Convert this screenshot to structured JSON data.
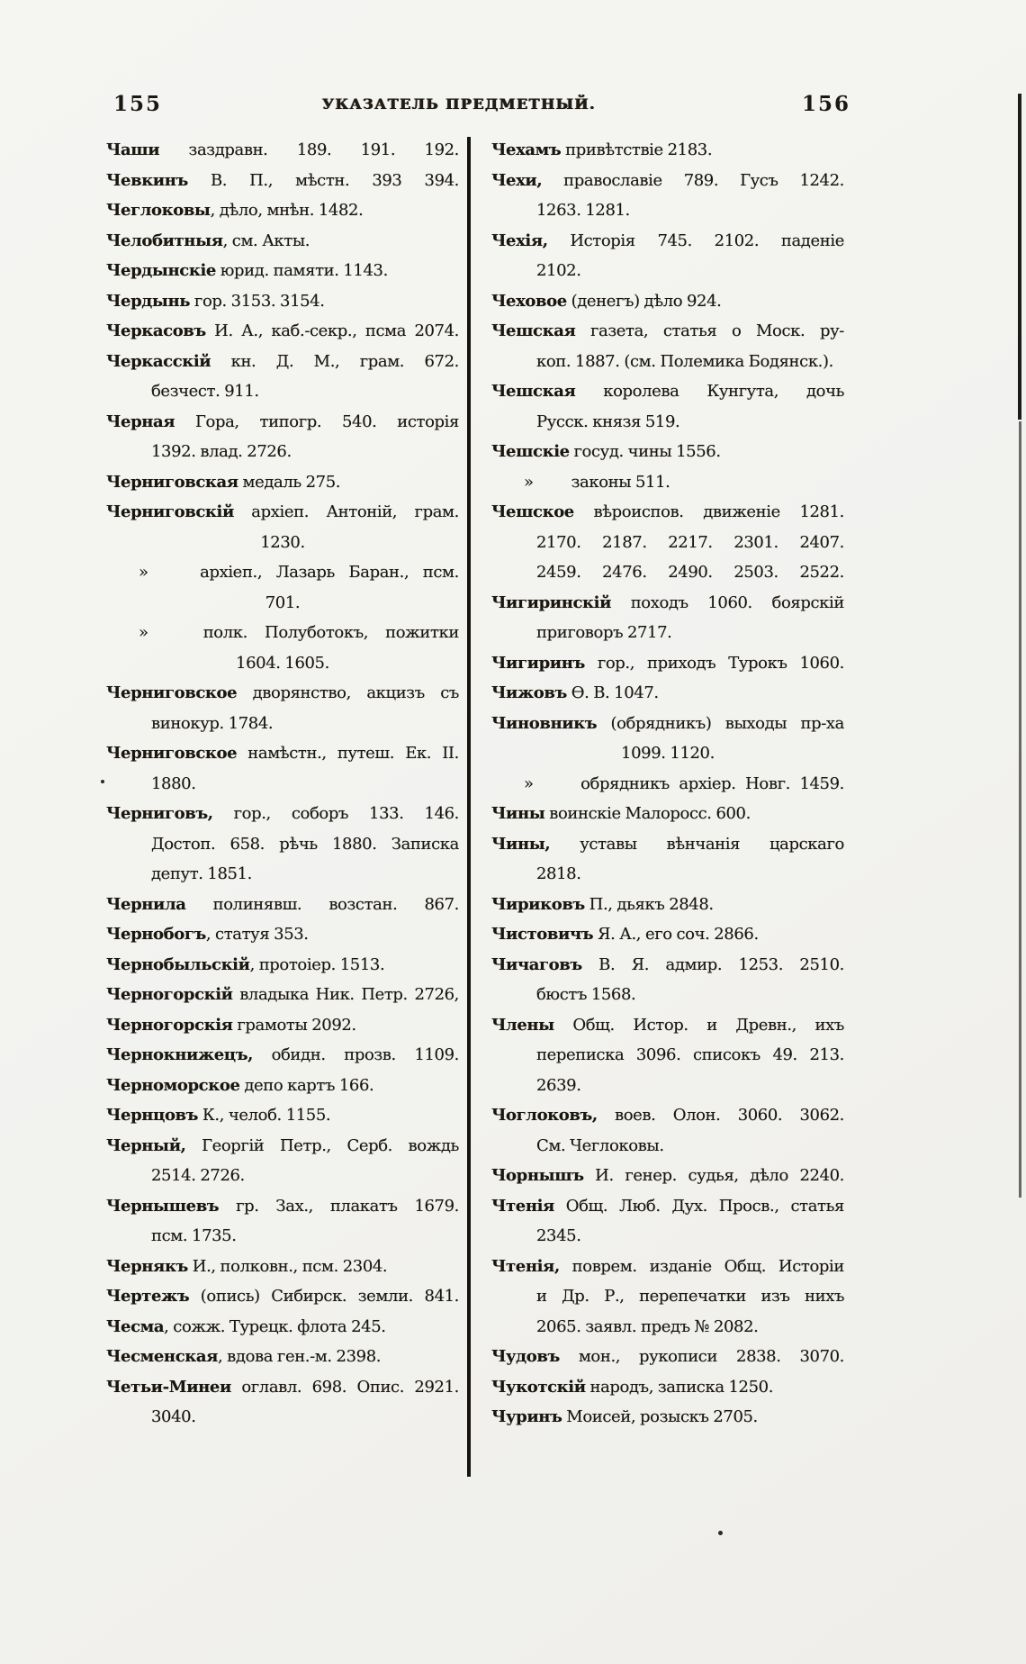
{
  "header": {
    "page_number_left": "155",
    "title": "УКАЗАТЕЛЬ ПРЕДМЕТНЫЙ.",
    "page_number_right": "156"
  },
  "index": {
    "left_column": [
      {
        "s": "e",
        "b": "Чаши",
        "t": " заздравн. 189. 191. 192.",
        "j": 1
      },
      {
        "s": "e",
        "b": "Чевкинъ",
        "t": " В. П., мѣстн. 393 394.",
        "j": 1
      },
      {
        "s": "e",
        "b": "Чеглоковы",
        "t": ", дѣло, мнѣн. 1482.",
        "j": 0
      },
      {
        "s": "e",
        "b": "Челобитныя",
        "t": ", см. Акты.",
        "j": 0
      },
      {
        "s": "e",
        "b": "Чердынскіе",
        "t": " юрид. памяти. 1143.",
        "j": 0
      },
      {
        "s": "e",
        "b": "Чердынь",
        "t": " гор. 3153. 3154.",
        "j": 0
      },
      {
        "s": "e",
        "b": "Черкасовъ",
        "t": " И. А., каб.-секр., псма 2074.",
        "j": 1
      },
      {
        "s": "e",
        "b": "Черкасскій",
        "t": " кн. Д. М., грам. 672.",
        "j": 1
      },
      {
        "s": "c",
        "t": "безчест. 911.",
        "j": 0
      },
      {
        "s": "e",
        "b": "Черная",
        "t": " Гора, типогр. 540. исторія",
        "j": 1
      },
      {
        "s": "c",
        "t": "1392. влад. 2726.",
        "j": 0
      },
      {
        "s": "e",
        "b": "Черниговская",
        "t": " медаль 275.",
        "j": 0
      },
      {
        "s": "e",
        "b": "Черниговскій",
        "t": " архіеп. Антоній, грам.",
        "j": 1
      },
      {
        "s": "n",
        "t": "1230.",
        "j": 0
      },
      {
        "s": "s",
        "m": "»",
        "t": "архіеп., Лазарь Баран., псм.",
        "j": 1
      },
      {
        "s": "n",
        "t": "701.",
        "j": 0
      },
      {
        "s": "s",
        "m": "»",
        "t": "полк. Полуботокъ, пожитки",
        "j": 1
      },
      {
        "s": "n",
        "t": "1604. 1605.",
        "j": 0
      },
      {
        "s": "e",
        "b": "Черниговское",
        "t": " дворянство, акцизъ съ",
        "j": 1
      },
      {
        "s": "c",
        "t": "винокур. 1784.",
        "j": 0
      },
      {
        "s": "e",
        "b": "Черниговское",
        "t": " намѣстн., путеш. Ек. II.",
        "j": 1
      },
      {
        "s": "c",
        "t": "1880.",
        "j": 0
      },
      {
        "s": "e",
        "b": "Черниговъ",
        "t": ", гор., соборъ 133. 146.",
        "j": 1
      },
      {
        "s": "c",
        "t": "Достоп. 658. рѣчь 1880. Записка",
        "j": 1
      },
      {
        "s": "c",
        "t": "депут. 1851.",
        "j": 0
      },
      {
        "s": "e",
        "b": "Чернила",
        "t": " полинявш. возстан. 867.",
        "j": 1
      },
      {
        "s": "e",
        "b": "Чернобогъ",
        "t": ", статуя 353.",
        "j": 0
      },
      {
        "s": "e",
        "b": "Чернобыльскій",
        "t": ", протоіер. 1513.",
        "j": 0
      },
      {
        "s": "e",
        "b": "Черногорскій",
        "t": " владыка Ник. Петр. 2726,",
        "j": 1
      },
      {
        "s": "e",
        "b": "Черногорскія",
        "t": " грамоты 2092.",
        "j": 0
      },
      {
        "s": "e",
        "b": "Чернокнижецъ",
        "t": ", обидн. прозв. 1109.",
        "j": 1
      },
      {
        "s": "e",
        "b": "Черноморское",
        "t": " депо картъ 166.",
        "j": 0
      },
      {
        "s": "e",
        "b": "Чернцовъ",
        "t": " К., челоб. 1155.",
        "j": 0
      },
      {
        "s": "e",
        "b": "Черный",
        "t": ", Георгій Петр., Серб. вождь",
        "j": 1
      },
      {
        "s": "c",
        "t": "2514. 2726.",
        "j": 0
      },
      {
        "s": "e",
        "b": "Чернышевъ",
        "t": " гр. Зах., плакатъ 1679.",
        "j": 1
      },
      {
        "s": "c",
        "t": "псм. 1735.",
        "j": 0
      },
      {
        "s": "e",
        "b": "Чернякъ",
        "t": " И., полковн., псм. 2304.",
        "j": 0
      },
      {
        "s": "e",
        "b": "Чертежъ",
        "t": " (опись) Сибирск. земли. 841.",
        "j": 1
      },
      {
        "s": "e",
        "b": "Чесма",
        "t": ", сожж. Турецк. флота 245.",
        "j": 0
      },
      {
        "s": "e",
        "b": "Чесменская",
        "t": ", вдова ген.-м. 2398.",
        "j": 0
      },
      {
        "s": "e",
        "b": "Четьи-Минеи",
        "t": " оглавл. 698. Опис. 2921.",
        "j": 1
      },
      {
        "s": "c",
        "t": "3040.",
        "j": 0
      }
    ],
    "right_column": [
      {
        "s": "e",
        "b": "Чехамъ",
        "t": " привѣтствіе 2183.",
        "j": 0
      },
      {
        "s": "e",
        "b": "Чехи",
        "t": ", православіе 789. Гусъ 1242.",
        "j": 1
      },
      {
        "s": "c",
        "t": "1263. 1281.",
        "j": 0
      },
      {
        "s": "e",
        "b": "Чехія",
        "t": ", Исторія 745. 2102. паденіе",
        "j": 1
      },
      {
        "s": "c",
        "t": "2102.",
        "j": 0
      },
      {
        "s": "e",
        "b": "Чеховое",
        "t": " (денегъ) дѣло 924.",
        "j": 0
      },
      {
        "s": "e",
        "b": "Чешская",
        "t": " газета, статья о Моск. ру-",
        "j": 1
      },
      {
        "s": "c",
        "t": "коп. 1887. (см. Полемика Бодянск.).",
        "j": 0
      },
      {
        "s": "e",
        "b": "Чешская",
        "t": " королева Кунгута, дочь",
        "j": 1
      },
      {
        "s": "c",
        "t": "Русск. князя 519.",
        "j": 0
      },
      {
        "s": "e",
        "b": "Чешскіе",
        "t": " госуд. чины 1556.",
        "j": 0
      },
      {
        "s": "s",
        "m": "»",
        "t": "законы 511.",
        "j": 0
      },
      {
        "s": "e",
        "b": "Чешское",
        "t": " вѣроиспов. движеніе 1281.",
        "j": 1
      },
      {
        "s": "c",
        "t": "2170. 2187. 2217. 2301. 2407.",
        "j": 1
      },
      {
        "s": "c",
        "t": "2459. 2476. 2490. 2503. 2522.",
        "j": 1
      },
      {
        "s": "e",
        "b": "Чигиринскій",
        "t": " походъ 1060. боярскій",
        "j": 1
      },
      {
        "s": "c",
        "t": "приговоръ 2717.",
        "j": 0
      },
      {
        "s": "e",
        "b": "Чигиринъ",
        "t": " гор., приходъ Турокъ 1060.",
        "j": 1
      },
      {
        "s": "e",
        "b": "Чижовъ",
        "t": " Ѳ. В. 1047.",
        "j": 0
      },
      {
        "s": "e",
        "b": "Чиновникъ",
        "t": " (обрядникъ) выходы пр-ха",
        "j": 1
      },
      {
        "s": "n",
        "t": "1099. 1120.",
        "j": 0
      },
      {
        "s": "s",
        "m": "»",
        "t": "обрядникъ архіер. Новг. 1459.",
        "j": 1
      },
      {
        "s": "e",
        "b": "Чины",
        "t": " воинскіе Малоросс. 600.",
        "j": 0
      },
      {
        "s": "e",
        "b": "Чины",
        "t": ", уставы вѣнчанія царскаго",
        "j": 1
      },
      {
        "s": "c",
        "t": "2818.",
        "j": 0
      },
      {
        "s": "e",
        "b": "Чириковъ",
        "t": " П., дьякъ 2848.",
        "j": 0
      },
      {
        "s": "e",
        "b": "Чистовичъ",
        "t": " Я. А., его соч. 2866.",
        "j": 0
      },
      {
        "s": "e",
        "b": "Чичаговъ",
        "t": " В. Я. адмир. 1253. 2510.",
        "j": 1
      },
      {
        "s": "c",
        "t": "бюстъ 1568.",
        "j": 0
      },
      {
        "s": "e",
        "b": "Члены",
        "t": " Общ. Истор. и Древн., ихъ",
        "j": 1
      },
      {
        "s": "c",
        "t": "переписка 3096. списокъ 49. 213.",
        "j": 1
      },
      {
        "s": "c",
        "t": "2639.",
        "j": 0
      },
      {
        "s": "e",
        "b": "Чоглоковъ",
        "t": ", воев. Олон. 3060. 3062.",
        "j": 1
      },
      {
        "s": "c",
        "t": "См. Чеглоковы.",
        "j": 0
      },
      {
        "s": "e",
        "b": "Чорнышъ",
        "t": " И. генер. судья, дѣло 2240.",
        "j": 1
      },
      {
        "s": "e",
        "b": "Чтенія",
        "t": " Общ. Люб. Дух. Просв., статья",
        "j": 1
      },
      {
        "s": "c",
        "t": "2345.",
        "j": 0
      },
      {
        "s": "e",
        "b": "Чтенія",
        "t": ", поврем. изданіе Общ. Исторіи",
        "j": 1
      },
      {
        "s": "c",
        "t": "и Др. Р., перепечатки изъ нихъ",
        "j": 1
      },
      {
        "s": "c",
        "t": "2065. заявл. предъ № 2082.",
        "j": 0
      },
      {
        "s": "e",
        "b": "Чудовъ",
        "t": " мон., рукописи 2838. 3070.",
        "j": 1
      },
      {
        "s": "e",
        "b": "Чукотскій",
        "t": " народъ, записка 1250.",
        "j": 0
      },
      {
        "s": "e",
        "b": "Чуринъ",
        "t": " Моисей, розыскъ 2705.",
        "j": 0
      }
    ]
  }
}
